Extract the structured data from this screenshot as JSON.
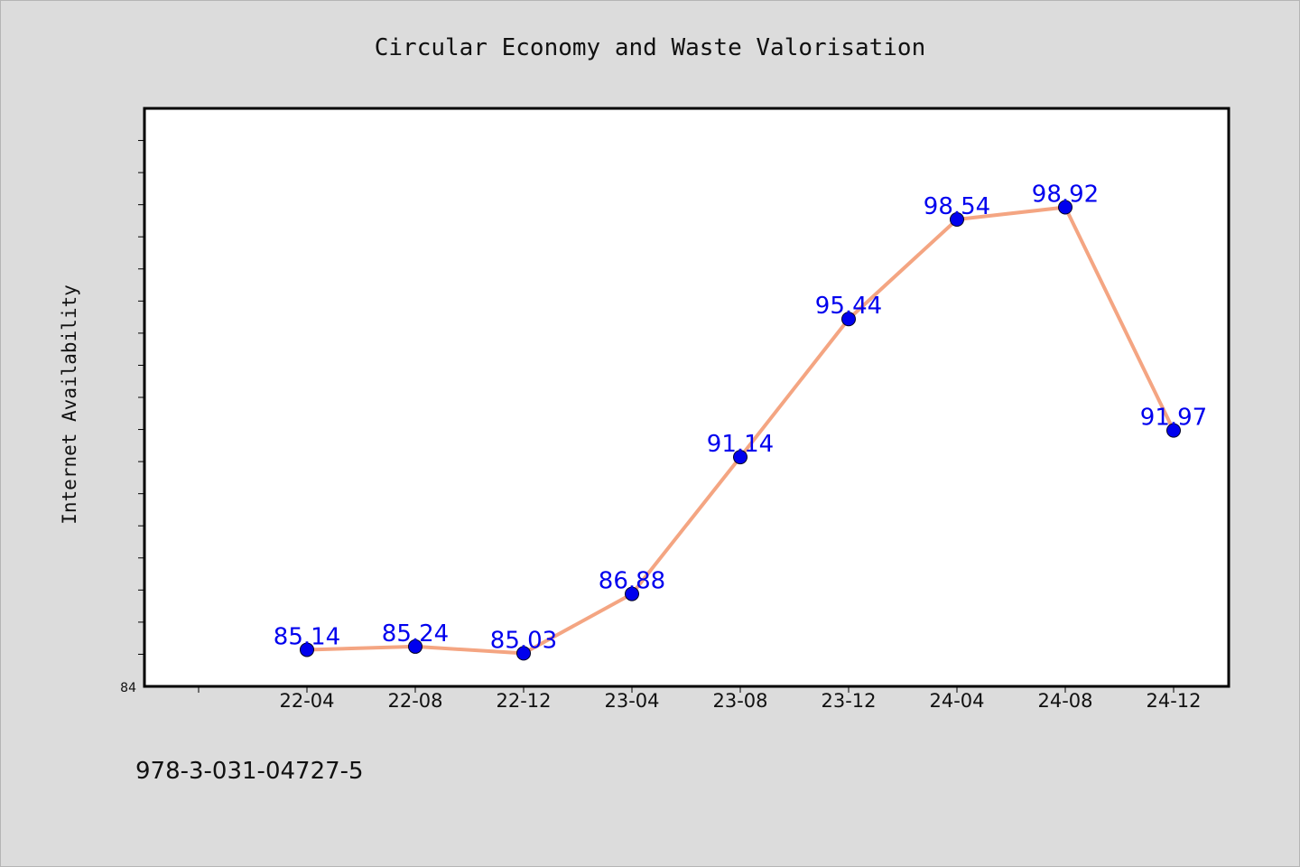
{
  "footer_code": "978-3-031-04727-5",
  "chart_data": {
    "type": "line",
    "title": "Circular Economy and Waste Valorisation",
    "xlabel": "",
    "ylabel": "Internet Availability",
    "categories": [
      "22-04",
      "22-08",
      "22-12",
      "23-04",
      "23-08",
      "23-12",
      "24-04",
      "24-08",
      "24-12"
    ],
    "series": [
      {
        "values": [
          85.14,
          85.24,
          85.03,
          86.88,
          91.14,
          95.44,
          98.54,
          98.92,
          91.97
        ],
        "labels": [
          "85.14",
          "85.24",
          "85.03",
          "86.88",
          "91.14",
          "95.44",
          "98.54",
          "98.92",
          "91.97"
        ]
      }
    ],
    "ylim": [
      84,
      102
    ],
    "ymin_label": "84",
    "grid": false,
    "legend": "none",
    "colors": {
      "line": "#f4a582",
      "marker": "#0000ee",
      "data_label": "#0000ee",
      "background": "#dcdcdc",
      "plot_background": "#ffffff"
    }
  }
}
